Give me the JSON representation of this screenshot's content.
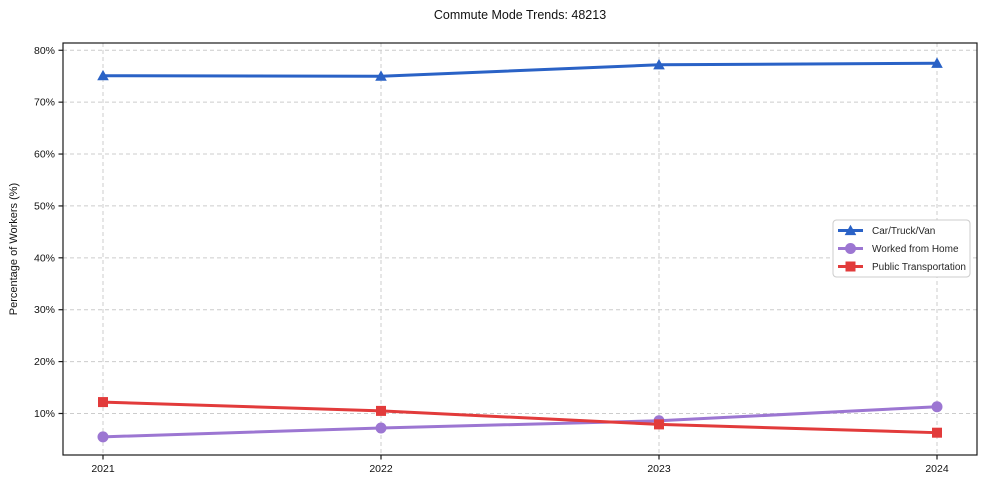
{
  "chart_data": {
    "type": "line",
    "title": "Commute Mode Trends: 48213",
    "ylabel": "Percentage of Workers (%)",
    "xlabel": "",
    "x_labels": [
      "2021",
      "2022",
      "2023",
      "2024"
    ],
    "ytick_values": [
      10,
      20,
      30,
      40,
      50,
      60,
      70,
      80
    ],
    "ytick_labels": [
      "10%",
      "20%",
      "30%",
      "40%",
      "50%",
      "60%",
      "70%",
      "80%"
    ],
    "ylim": [
      2,
      81.4
    ],
    "grid": true,
    "grid_color": "#cccccc",
    "spine_color": "#1a1a1a",
    "legend_position": "center-right",
    "series": [
      {
        "name": "Car/Truck/Van",
        "marker": "triangle-up",
        "color": "#2a62c6",
        "values": [
          75.1,
          75.0,
          77.2,
          77.5
        ]
      },
      {
        "name": "Worked from Home",
        "marker": "circle",
        "color": "#9c76d2",
        "values": [
          5.5,
          7.2,
          8.6,
          11.3
        ]
      },
      {
        "name": "Public Transportation",
        "marker": "square",
        "color": "#e23b3b",
        "values": [
          12.2,
          10.5,
          7.9,
          6.3
        ]
      }
    ]
  }
}
